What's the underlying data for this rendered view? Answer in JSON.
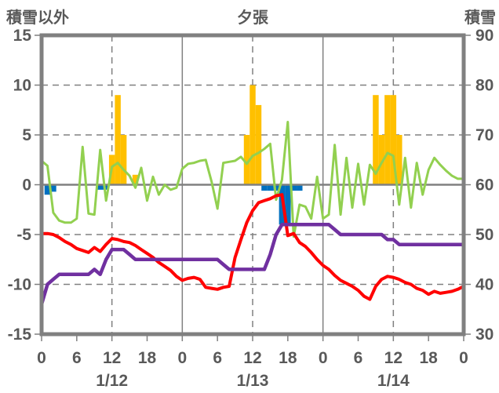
{
  "chart_data": {
    "type": "combo",
    "title": "夕張",
    "background": "#FFFFFF",
    "axis_color": "#808080",
    "text_color": "#595959",
    "grid": {
      "horizontal_dashed_at": [
        10,
        5,
        -5,
        -10
      ],
      "zero_line_at": 0,
      "vertical_solid_hours": [
        24,
        48
      ],
      "vertical_dashed_hours": [
        12,
        36,
        60
      ]
    },
    "left_axis": {
      "label": "積雪以外",
      "min": -15,
      "max": 15,
      "ticks": [
        "15",
        "10",
        "5",
        "0",
        "-5",
        "-10",
        "-15"
      ]
    },
    "right_axis": {
      "label": "積雪",
      "min": 30,
      "max": 90,
      "ticks": [
        "90",
        "80",
        "70",
        "60",
        "50",
        "40",
        "30"
      ]
    },
    "x_axis": {
      "min_hour": 0,
      "max_hour": 72,
      "tick_every": 6,
      "tick_labels": [
        "0",
        "6",
        "12",
        "18",
        "0",
        "6",
        "12",
        "18",
        "0",
        "6",
        "12",
        "18",
        "0"
      ],
      "day_labels": [
        {
          "label": "1/12",
          "hour": 12
        },
        {
          "label": "1/13",
          "hour": 36
        },
        {
          "label": "1/14",
          "hour": 60
        }
      ]
    },
    "series": [
      {
        "id": "snowfall-bars",
        "type": "bar",
        "axis": "left",
        "color": "#FFC000",
        "points": [
          [
            12,
            3
          ],
          [
            13,
            9
          ],
          [
            14,
            5
          ],
          [
            16,
            1
          ],
          [
            35,
            5
          ],
          [
            36,
            10
          ],
          [
            37,
            8
          ],
          [
            57,
            9
          ],
          [
            58,
            5
          ],
          [
            59,
            9
          ],
          [
            60,
            9
          ],
          [
            61,
            5
          ]
        ]
      },
      {
        "id": "negative-bars",
        "type": "bar",
        "axis": "left",
        "color": "#0070C0",
        "points": [
          [
            1,
            -1
          ],
          [
            2,
            -0.7
          ],
          [
            10,
            -0.5
          ],
          [
            11,
            -0.5
          ],
          [
            38,
            -0.6
          ],
          [
            39,
            -0.6
          ],
          [
            40,
            -0.6
          ],
          [
            41,
            -4
          ],
          [
            42,
            -4
          ],
          [
            43,
            -0.6
          ],
          [
            44,
            -0.6
          ]
        ]
      },
      {
        "id": "green-line",
        "type": "line",
        "axis": "left",
        "color": "#92D050",
        "width": 3,
        "start_hour": 0,
        "values": [
          2.4,
          1.9,
          -2.8,
          -3.6,
          -3.8,
          -3.8,
          -3.4,
          3.8,
          -2.9,
          -3.0,
          3.5,
          -1.6,
          1.8,
          2.2,
          1.5,
          0.9,
          -0.3,
          1.7,
          -1.6,
          0.8,
          -1.0,
          0.0,
          -0.5,
          -0.3,
          1.6,
          2.1,
          2.2,
          2.4,
          2.5,
          0.3,
          -2.4,
          2.2,
          2.3,
          2.4,
          2.8,
          2.1,
          2.9,
          3.2,
          3.6,
          4.1,
          -1.5,
          0.5,
          6.3,
          -5.2,
          -2.0,
          -2.2,
          -3.4,
          0.8,
          -3.4,
          -3.0,
          4.0,
          -3.0,
          2.7,
          -2.3,
          2.1,
          -2.0,
          2.0,
          1.1,
          2.2,
          3.2,
          2.9,
          -2.0,
          2.7,
          -2.3,
          2.2,
          -1.0,
          1.5,
          2.7,
          2.0,
          1.4,
          0.9,
          0.6,
          0.6
        ]
      },
      {
        "id": "red-line",
        "type": "line",
        "axis": "left",
        "color": "#FF0000",
        "width": 4,
        "start_hour": 0,
        "values": [
          -4.9,
          -4.9,
          -5.0,
          -5.3,
          -5.7,
          -6.0,
          -6.4,
          -6.6,
          -6.8,
          -6.3,
          -6.7,
          -6.0,
          -5.4,
          -5.5,
          -5.7,
          -5.8,
          -6.1,
          -6.5,
          -6.9,
          -7.3,
          -7.8,
          -8.2,
          -8.6,
          -9.2,
          -9.6,
          -9.4,
          -9.3,
          -9.5,
          -10.3,
          -10.4,
          -10.5,
          -10.3,
          -10.2,
          -7.3,
          -5.5,
          -3.8,
          -2.6,
          -1.8,
          -1.6,
          -1.4,
          -1.1,
          -1.0,
          -5.1,
          -4.9,
          -5.8,
          -6.2,
          -6.8,
          -7.5,
          -8.1,
          -8.5,
          -9.1,
          -9.6,
          -9.9,
          -10.2,
          -10.6,
          -11.2,
          -11.5,
          -10.2,
          -9.5,
          -9.2,
          -9.3,
          -9.5,
          -9.8,
          -10.0,
          -10.4,
          -10.6,
          -11.0,
          -10.7,
          -10.9,
          -10.8,
          -10.7,
          -10.5,
          -10.2
        ]
      },
      {
        "id": "purple-line",
        "type": "line",
        "axis": "right",
        "color": "#7030A0",
        "width": 4.5,
        "start_hour": 0,
        "values": [
          36,
          40,
          41,
          42,
          42,
          42,
          42,
          42,
          42,
          43,
          42,
          45,
          47,
          47,
          47,
          46,
          45,
          45,
          45,
          45,
          45,
          45,
          45,
          45,
          45,
          45,
          45,
          45,
          45,
          45,
          45,
          44,
          43,
          43,
          43,
          43,
          43,
          43,
          43,
          46,
          50,
          52,
          52,
          52,
          52,
          52,
          52,
          52,
          52,
          52,
          51,
          50,
          50,
          50,
          50,
          50,
          50,
          50,
          50,
          49,
          49,
          48,
          48,
          48,
          48,
          48,
          48,
          48,
          48,
          48,
          48,
          48,
          48
        ]
      }
    ]
  }
}
